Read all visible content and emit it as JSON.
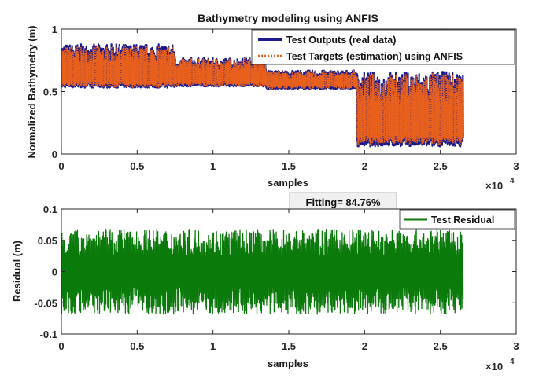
{
  "chart_data": [
    {
      "type": "line",
      "title": "Bathymetry modeling using ANFIS",
      "xlabel": "samples",
      "ylabel": "Normalized Bathymetry (m)",
      "xlim": [
        0,
        30000
      ],
      "ylim": [
        0,
        1
      ],
      "xticks": [
        0,
        5000,
        10000,
        15000,
        20000,
        25000,
        30000
      ],
      "xtick_labels": [
        "0",
        "0.5",
        "1",
        "1.5",
        "2",
        "2.5",
        "3"
      ],
      "yticks": [
        0,
        0.5,
        1
      ],
      "ytick_labels": [
        "0",
        "0.5",
        "1"
      ],
      "x_multiplier": "×10",
      "x_multiplier_exp": "4",
      "n_samples": 26500,
      "legend_position": "top-right",
      "series": [
        {
          "name": "Test Outputs (real data)",
          "color": "#1a1a8c",
          "style": "solid",
          "segments": [
            {
              "x_start": 0,
              "x_end": 7500,
              "low": 0.53,
              "high": 0.88
            },
            {
              "x_start": 7500,
              "x_end": 13500,
              "low": 0.54,
              "high": 0.77
            },
            {
              "x_start": 13500,
              "x_end": 19500,
              "low": 0.52,
              "high": 0.67
            },
            {
              "x_start": 19500,
              "x_end": 26500,
              "low": 0.06,
              "high": 0.66
            }
          ]
        },
        {
          "name": "Test Targets (estimation) using ANFIS",
          "color": "#e8601c",
          "style": "dotted",
          "segments": [
            {
              "x_start": 0,
              "x_end": 7500,
              "low": 0.54,
              "high": 0.86
            },
            {
              "x_start": 7500,
              "x_end": 13500,
              "low": 0.55,
              "high": 0.76
            },
            {
              "x_start": 13500,
              "x_end": 19500,
              "low": 0.53,
              "high": 0.66
            },
            {
              "x_start": 19500,
              "x_end": 26500,
              "low": 0.08,
              "high": 0.64
            }
          ]
        }
      ]
    },
    {
      "type": "line",
      "title": "",
      "xlabel": "samples",
      "ylabel": "Residual (m)",
      "xlim": [
        0,
        30000
      ],
      "ylim": [
        -0.1,
        0.1
      ],
      "xticks": [
        0,
        5000,
        10000,
        15000,
        20000,
        25000,
        30000
      ],
      "xtick_labels": [
        "0",
        "0.5",
        "1",
        "1.5",
        "2",
        "2.5",
        "3"
      ],
      "yticks": [
        -0.1,
        -0.05,
        0,
        0.05,
        0.1
      ],
      "ytick_labels": [
        "-0.1",
        "-0.05",
        "0",
        "0.05",
        "0.1"
      ],
      "x_multiplier": "×10",
      "x_multiplier_exp": "4",
      "n_samples": 26500,
      "legend_position": "top-right",
      "series": [
        {
          "name": "Test Residual",
          "color": "#0a7a0a",
          "style": "solid",
          "amplitude_min": -0.068,
          "amplitude_max": 0.068
        }
      ]
    }
  ],
  "annotation": {
    "text": "Fitting= 84.76%"
  }
}
